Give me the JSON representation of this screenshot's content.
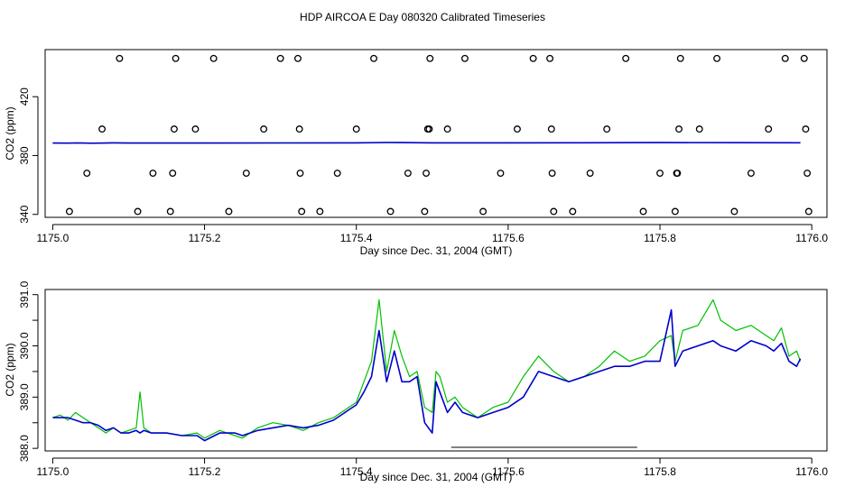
{
  "title": "HDP AIRCOA E  Day 080320  Calibrated Timeseries",
  "chart_data": [
    {
      "type": "scatter",
      "xlabel": "Day since Dec. 31, 2004 (GMT)",
      "ylabel": "CO2 (ppm)",
      "xlim": [
        1174.99,
        1176.02
      ],
      "ylim": [
        338,
        452
      ],
      "xticks": [
        "1175.0",
        "1175.2",
        "1175.4",
        "1175.6",
        "1175.8",
        "1176.0"
      ],
      "yticks": [
        "340",
        "380",
        "420"
      ],
      "ytick_values": [
        340,
        380,
        420
      ],
      "grid": false,
      "points": [
        [
          1175.022,
          342
        ],
        [
          1175.045,
          368
        ],
        [
          1175.065,
          398
        ],
        [
          1175.088,
          446
        ],
        [
          1175.112,
          342
        ],
        [
          1175.132,
          368
        ],
        [
          1175.155,
          342
        ],
        [
          1175.158,
          368
        ],
        [
          1175.16,
          398
        ],
        [
          1175.162,
          446
        ],
        [
          1175.188,
          398
        ],
        [
          1175.212,
          446
        ],
        [
          1175.232,
          342
        ],
        [
          1175.255,
          368
        ],
        [
          1175.278,
          398
        ],
        [
          1175.3,
          446
        ],
        [
          1175.323,
          446
        ],
        [
          1175.325,
          398
        ],
        [
          1175.326,
          368
        ],
        [
          1175.328,
          342
        ],
        [
          1175.352,
          342
        ],
        [
          1175.375,
          368
        ],
        [
          1175.4,
          398
        ],
        [
          1175.423,
          446
        ],
        [
          1175.445,
          342
        ],
        [
          1175.468,
          368
        ],
        [
          1175.49,
          342
        ],
        [
          1175.492,
          368
        ],
        [
          1175.494,
          398
        ],
        [
          1175.496,
          398
        ],
        [
          1175.497,
          446
        ],
        [
          1175.52,
          398
        ],
        [
          1175.543,
          446
        ],
        [
          1175.567,
          342
        ],
        [
          1175.59,
          368
        ],
        [
          1175.612,
          398
        ],
        [
          1175.633,
          446
        ],
        [
          1175.655,
          446
        ],
        [
          1175.657,
          398
        ],
        [
          1175.658,
          368
        ],
        [
          1175.66,
          342
        ],
        [
          1175.685,
          342
        ],
        [
          1175.708,
          368
        ],
        [
          1175.73,
          398
        ],
        [
          1175.755,
          446
        ],
        [
          1175.778,
          342
        ],
        [
          1175.8,
          368
        ],
        [
          1175.82,
          342
        ],
        [
          1175.822,
          368
        ],
        [
          1175.823,
          368
        ],
        [
          1175.825,
          398
        ],
        [
          1175.827,
          446
        ],
        [
          1175.852,
          398
        ],
        [
          1175.875,
          446
        ],
        [
          1175.898,
          342
        ],
        [
          1175.92,
          368
        ],
        [
          1175.943,
          398
        ],
        [
          1175.965,
          446
        ],
        [
          1175.99,
          446
        ],
        [
          1175.992,
          398
        ],
        [
          1175.994,
          368
        ],
        [
          1175.996,
          342
        ]
      ],
      "series": [
        {
          "color": "#00c000",
          "x": [
            1175.0,
            1175.02,
            1175.03,
            1175.04,
            1175.05,
            1175.06,
            1175.08,
            1175.1,
            1175.2,
            1175.3,
            1175.4,
            1175.44,
            1175.46,
            1175.5,
            1175.52,
            1175.6,
            1175.7,
            1175.8,
            1175.9,
            1175.985
          ],
          "values": [
            388.5,
            388.45,
            388.55,
            388.5,
            388.4,
            388.45,
            388.6,
            388.5,
            388.5,
            388.55,
            388.6,
            388.9,
            388.8,
            388.6,
            388.65,
            388.6,
            388.7,
            388.8,
            388.75,
            388.7
          ]
        },
        {
          "color": "#0000cc",
          "x": [
            1175.0,
            1175.02,
            1175.03,
            1175.04,
            1175.05,
            1175.06,
            1175.08,
            1175.1,
            1175.2,
            1175.3,
            1175.4,
            1175.44,
            1175.46,
            1175.5,
            1175.52,
            1175.6,
            1175.7,
            1175.8,
            1175.9,
            1175.985
          ],
          "values": [
            388.5,
            388.45,
            388.55,
            388.5,
            388.4,
            388.45,
            388.6,
            388.5,
            388.5,
            388.55,
            388.6,
            388.9,
            388.8,
            388.6,
            388.65,
            388.6,
            388.7,
            388.8,
            388.75,
            388.7
          ]
        }
      ]
    },
    {
      "type": "line",
      "xlabel": "Day since Dec. 31, 2004 (GMT)",
      "ylabel": "CO2 (ppm)",
      "xlim": [
        1174.99,
        1176.02
      ],
      "ylim": [
        387.95,
        391.1
      ],
      "xticks": [
        "1175.0",
        "1175.2",
        "1175.4",
        "1175.6",
        "1175.8",
        "1176.0"
      ],
      "yticks": [
        "388.0",
        "389.0",
        "390.0",
        "391.0"
      ],
      "ytick_values": [
        388.0,
        388.5,
        389.0,
        389.5,
        390.0,
        390.5,
        391.0
      ],
      "grid": false,
      "annotation_segment": {
        "x": [
          1175.525,
          1175.77
        ],
        "y": 388.02
      },
      "series": [
        {
          "color": "#00c000",
          "x": [
            1175.0,
            1175.01,
            1175.02,
            1175.03,
            1175.04,
            1175.05,
            1175.06,
            1175.07,
            1175.08,
            1175.09,
            1175.1,
            1175.11,
            1175.115,
            1175.12,
            1175.13,
            1175.15,
            1175.17,
            1175.19,
            1175.2,
            1175.22,
            1175.24,
            1175.25,
            1175.27,
            1175.29,
            1175.31,
            1175.33,
            1175.35,
            1175.37,
            1175.39,
            1175.4,
            1175.41,
            1175.42,
            1175.43,
            1175.44,
            1175.45,
            1175.46,
            1175.47,
            1175.48,
            1175.49,
            1175.5,
            1175.505,
            1175.51,
            1175.52,
            1175.53,
            1175.54,
            1175.56,
            1175.58,
            1175.6,
            1175.62,
            1175.64,
            1175.66,
            1175.68,
            1175.7,
            1175.72,
            1175.74,
            1175.76,
            1175.78,
            1175.8,
            1175.815,
            1175.82,
            1175.83,
            1175.85,
            1175.87,
            1175.88,
            1175.9,
            1175.92,
            1175.94,
            1175.95,
            1175.96,
            1175.97,
            1175.98,
            1175.985
          ],
          "values": [
            388.6,
            388.65,
            388.55,
            388.7,
            388.6,
            388.5,
            388.4,
            388.3,
            388.4,
            388.3,
            388.35,
            388.4,
            389.1,
            388.4,
            388.3,
            388.3,
            388.25,
            388.3,
            388.2,
            388.35,
            388.25,
            388.2,
            388.4,
            388.5,
            388.45,
            388.35,
            388.5,
            388.6,
            388.8,
            388.9,
            389.3,
            389.7,
            390.9,
            389.5,
            390.3,
            389.8,
            389.4,
            389.5,
            388.8,
            388.7,
            389.5,
            389.4,
            388.9,
            389.0,
            388.8,
            388.6,
            388.8,
            388.9,
            389.4,
            389.8,
            389.5,
            389.3,
            389.4,
            389.6,
            389.9,
            389.7,
            389.8,
            390.1,
            390.2,
            389.7,
            390.3,
            390.4,
            390.9,
            390.5,
            390.3,
            390.4,
            390.2,
            390.1,
            390.35,
            389.8,
            389.9,
            389.7
          ]
        },
        {
          "color": "#0000cc",
          "x": [
            1175.0,
            1175.01,
            1175.02,
            1175.03,
            1175.04,
            1175.05,
            1175.06,
            1175.07,
            1175.08,
            1175.09,
            1175.1,
            1175.11,
            1175.115,
            1175.12,
            1175.13,
            1175.15,
            1175.17,
            1175.19,
            1175.2,
            1175.22,
            1175.24,
            1175.25,
            1175.27,
            1175.29,
            1175.31,
            1175.33,
            1175.35,
            1175.37,
            1175.39,
            1175.4,
            1175.41,
            1175.42,
            1175.43,
            1175.44,
            1175.45,
            1175.46,
            1175.47,
            1175.48,
            1175.49,
            1175.5,
            1175.505,
            1175.51,
            1175.52,
            1175.53,
            1175.54,
            1175.56,
            1175.58,
            1175.6,
            1175.62,
            1175.64,
            1175.66,
            1175.68,
            1175.7,
            1175.72,
            1175.74,
            1175.76,
            1175.78,
            1175.8,
            1175.815,
            1175.82,
            1175.83,
            1175.85,
            1175.87,
            1175.88,
            1175.9,
            1175.92,
            1175.94,
            1175.95,
            1175.96,
            1175.97,
            1175.98,
            1175.985
          ],
          "values": [
            388.6,
            388.6,
            388.6,
            388.55,
            388.5,
            388.5,
            388.45,
            388.35,
            388.4,
            388.3,
            388.3,
            388.35,
            388.3,
            388.35,
            388.3,
            388.3,
            388.25,
            388.25,
            388.15,
            388.3,
            388.3,
            388.25,
            388.35,
            388.4,
            388.45,
            388.4,
            388.45,
            388.55,
            388.75,
            388.85,
            389.1,
            389.4,
            390.3,
            389.3,
            389.9,
            389.3,
            389.3,
            389.4,
            388.5,
            388.3,
            389.3,
            389.1,
            388.7,
            388.9,
            388.7,
            388.6,
            388.7,
            388.8,
            389.0,
            389.5,
            389.4,
            389.3,
            389.4,
            389.5,
            389.6,
            389.6,
            389.7,
            389.7,
            390.7,
            389.6,
            389.9,
            390.0,
            390.1,
            390.0,
            389.9,
            390.1,
            390.0,
            389.9,
            390.05,
            389.7,
            389.6,
            389.75
          ]
        }
      ]
    }
  ]
}
